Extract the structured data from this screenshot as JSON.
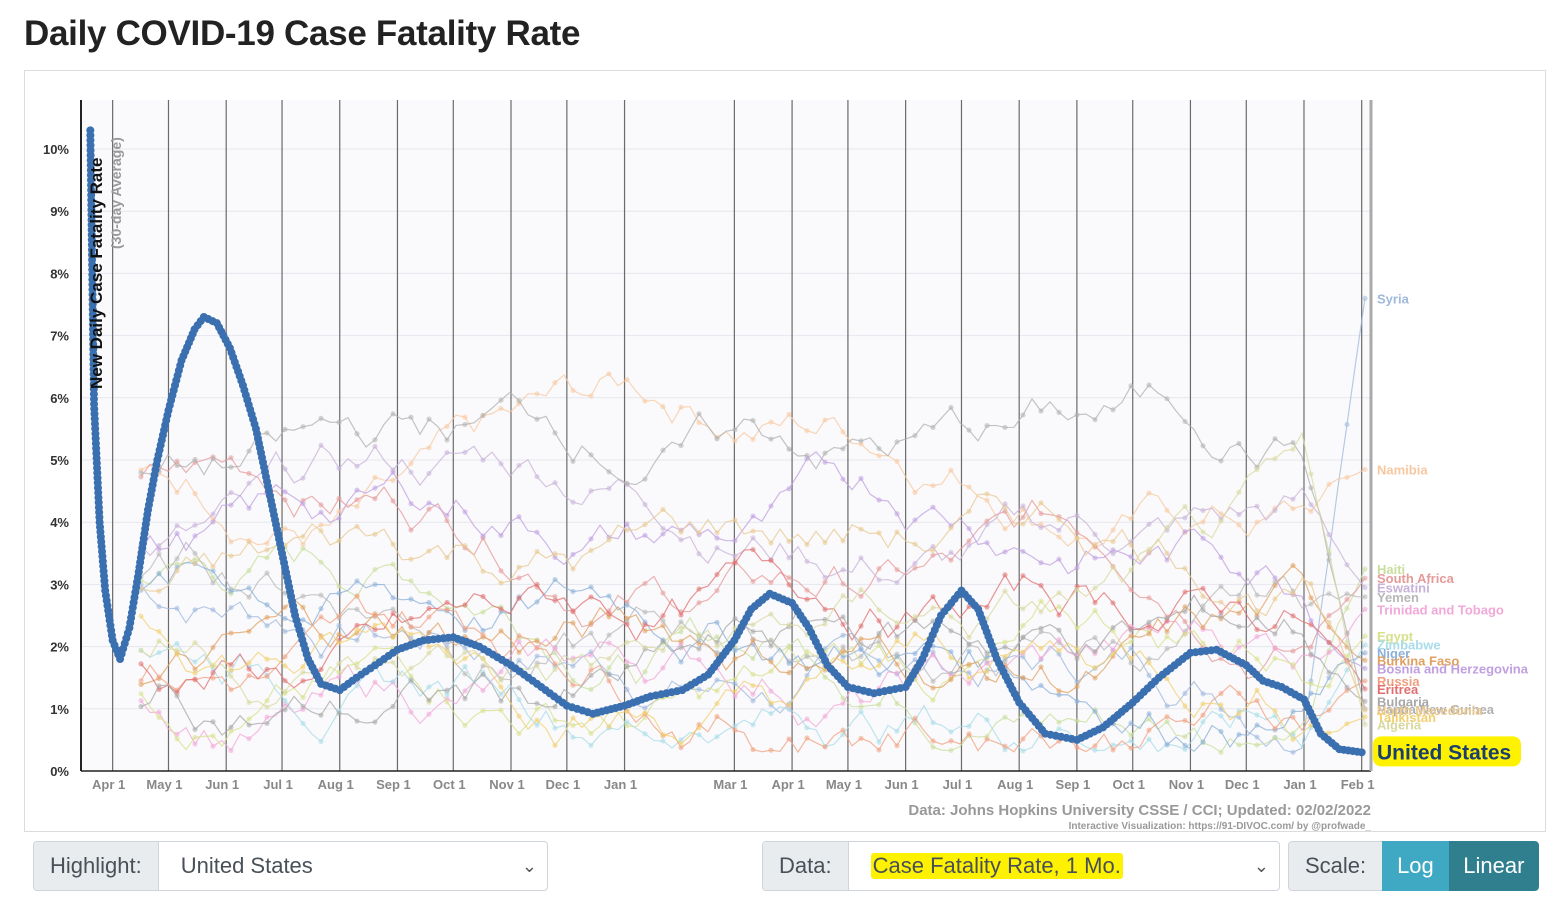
{
  "page_title": "Daily COVID-19 Case Fatality Rate",
  "controls": {
    "highlight_label": "Highlight:",
    "highlight_value": "United States",
    "data_label": "Data:",
    "data_value": "Case Fatality Rate, 1 Mo.",
    "scale_label": "Scale:",
    "scale_log": "Log",
    "scale_linear": "Linear",
    "scale_selected": "Linear"
  },
  "chart_data": {
    "type": "line",
    "ylabel": "New Daily Case Fatality Rate",
    "ylabel_sub": "(30-day Average)",
    "ylim": [
      0,
      10.8
    ],
    "yticks": [
      "0%",
      "1%",
      "2%",
      "3%",
      "4%",
      "5%",
      "6%",
      "7%",
      "8%",
      "9%",
      "10%"
    ],
    "xticks": [
      "Apr 1",
      "May 1",
      "Jun 1",
      "Jul 1",
      "Aug 1",
      "Sep 1",
      "Oct 1",
      "Nov 1",
      "Dec 1",
      "Jan 1",
      "Mar 1",
      "Apr 1",
      "May 1",
      "Jun 1",
      "Jul 1",
      "Aug 1",
      "Sep 1",
      "Oct 1",
      "Nov 1",
      "Dec 1",
      "Jan 1",
      "Feb 1"
    ],
    "grid": true,
    "source_note": "Data: Johns Hopkins University CSSE / CCI; Updated: 02/02/2022",
    "credit_note": "Interactive Visualization: https://91-DIVOC.com/ by @profwade_",
    "highlighted_series": {
      "name": "United States",
      "color": "#3a6fb0",
      "points": [
        [
          "2020-03-20",
          10.3
        ],
        [
          "2020-03-22",
          5.9
        ],
        [
          "2020-03-25",
          4.0
        ],
        [
          "2020-03-28",
          2.9
        ],
        [
          "2020-04-01",
          2.1
        ],
        [
          "2020-04-05",
          1.8
        ],
        [
          "2020-04-10",
          2.3
        ],
        [
          "2020-04-15",
          3.2
        ],
        [
          "2020-04-20",
          4.2
        ],
        [
          "2020-04-25",
          5.0
        ],
        [
          "2020-05-01",
          5.8
        ],
        [
          "2020-05-08",
          6.6
        ],
        [
          "2020-05-15",
          7.1
        ],
        [
          "2020-05-20",
          7.3
        ],
        [
          "2020-05-27",
          7.2
        ],
        [
          "2020-06-03",
          6.8
        ],
        [
          "2020-06-10",
          6.2
        ],
        [
          "2020-06-17",
          5.5
        ],
        [
          "2020-06-24",
          4.5
        ],
        [
          "2020-07-01",
          3.5
        ],
        [
          "2020-07-08",
          2.5
        ],
        [
          "2020-07-15",
          1.8
        ],
        [
          "2020-07-22",
          1.4
        ],
        [
          "2020-08-01",
          1.3
        ],
        [
          "2020-08-10",
          1.5
        ],
        [
          "2020-08-20",
          1.7
        ],
        [
          "2020-09-01",
          1.95
        ],
        [
          "2020-09-15",
          2.1
        ],
        [
          "2020-10-01",
          2.15
        ],
        [
          "2020-10-15",
          2.0
        ],
        [
          "2020-11-01",
          1.7
        ],
        [
          "2020-11-15",
          1.4
        ],
        [
          "2020-12-01",
          1.05
        ],
        [
          "2020-12-15",
          0.92
        ],
        [
          "2021-01-01",
          1.05
        ],
        [
          "2021-01-15",
          1.2
        ],
        [
          "2021-02-01",
          1.3
        ],
        [
          "2021-02-15",
          1.55
        ],
        [
          "2021-03-01",
          2.1
        ],
        [
          "2021-03-10",
          2.6
        ],
        [
          "2021-03-20",
          2.85
        ],
        [
          "2021-04-01",
          2.7
        ],
        [
          "2021-04-10",
          2.3
        ],
        [
          "2021-04-20",
          1.7
        ],
        [
          "2021-05-01",
          1.35
        ],
        [
          "2021-05-15",
          1.25
        ],
        [
          "2021-06-01",
          1.35
        ],
        [
          "2021-06-10",
          1.8
        ],
        [
          "2021-06-20",
          2.5
        ],
        [
          "2021-07-01",
          2.9
        ],
        [
          "2021-07-10",
          2.6
        ],
        [
          "2021-07-20",
          1.8
        ],
        [
          "2021-08-01",
          1.1
        ],
        [
          "2021-08-15",
          0.6
        ],
        [
          "2021-09-01",
          0.5
        ],
        [
          "2021-09-15",
          0.7
        ],
        [
          "2021-10-01",
          1.1
        ],
        [
          "2021-10-15",
          1.5
        ],
        [
          "2021-11-01",
          1.9
        ],
        [
          "2021-11-15",
          1.95
        ],
        [
          "2021-12-01",
          1.7
        ],
        [
          "2021-12-10",
          1.45
        ],
        [
          "2021-12-20",
          1.35
        ],
        [
          "2022-01-01",
          1.15
        ],
        [
          "2022-01-10",
          0.6
        ],
        [
          "2022-01-20",
          0.35
        ],
        [
          "2022-02-01",
          0.3
        ]
      ]
    },
    "other_series_labels": [
      {
        "name": "Syria",
        "value": 7.6,
        "color": "#9fb8dc"
      },
      {
        "name": "Namibia",
        "value": 4.85,
        "color": "#f7c8a0"
      },
      {
        "name": "Haiti",
        "value": 3.25,
        "color": "#c8de9c"
      },
      {
        "name": "South Africa",
        "value": 3.1,
        "color": "#e59a9a"
      },
      {
        "name": "Eswatini",
        "value": 2.95,
        "color": "#c8b2d8"
      },
      {
        "name": "Yemen",
        "value": 2.8,
        "color": "#b8b8b8"
      },
      {
        "name": "Trinidad and Tobago",
        "value": 2.6,
        "color": "#f2a8d8"
      },
      {
        "name": "Egypt",
        "value": 2.17,
        "color": "#d8e08c"
      },
      {
        "name": "Zimbabwe",
        "value": 2.03,
        "color": "#a8dce8"
      },
      {
        "name": "Niger",
        "value": 1.9,
        "color": "#8cb0d8"
      },
      {
        "name": "Burkina Faso",
        "value": 1.78,
        "color": "#e0a060"
      },
      {
        "name": "Bosnia and Herzegovina",
        "value": 1.65,
        "color": "#c0a0e0"
      },
      {
        "name": "Russia",
        "value": 1.45,
        "color": "#f0a080"
      },
      {
        "name": "Eritrea",
        "value": 1.32,
        "color": "#e07070"
      },
      {
        "name": "Bulgaria",
        "value": 1.12,
        "color": "#a8a8a8"
      },
      {
        "name": "Papua New Guinea",
        "value": 1.0,
        "color": "#b0b0b0"
      },
      {
        "name": "North Macedonia",
        "value": 0.98,
        "color": "#e8c890"
      },
      {
        "name": "Tajikistan",
        "value": 0.87,
        "color": "#f0d070"
      },
      {
        "name": "Algeria",
        "value": 0.75,
        "color": "#d8d8a0"
      }
    ],
    "highlight_label": "United States"
  }
}
